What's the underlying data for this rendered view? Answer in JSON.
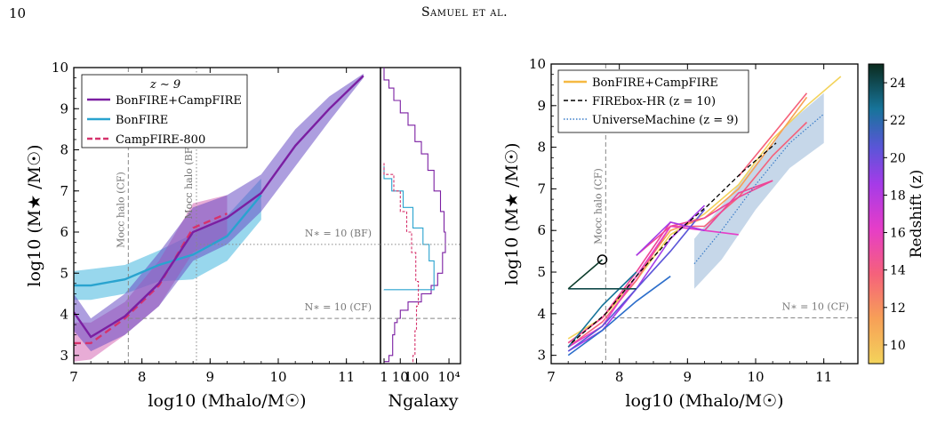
{
  "page": {
    "number": "10",
    "header": "Samuel et al."
  },
  "chart_data": [
    {
      "type": "line",
      "panel": "left-main",
      "annotation": "z ∼ 9",
      "xlabel": "log10 (Mhalo/M☉)",
      "ylabel": "log10 (M★ /M☉)",
      "xlim": [
        7,
        11.5
      ],
      "ylim": [
        2.8,
        10
      ],
      "xticks": [
        "7",
        "8",
        "9",
        "10",
        "11"
      ],
      "yticks": [
        "3",
        "4",
        "5",
        "6",
        "7",
        "8",
        "9",
        "10"
      ],
      "legend_position": "top-left",
      "series": [
        {
          "name": "BonFIRE+CampFIRE",
          "color": "#7b1fa2",
          "x": [
            7.0,
            7.25,
            7.75,
            8.25,
            8.75,
            9.25,
            9.75,
            10.25,
            10.75,
            11.25
          ],
          "y": [
            4.05,
            3.45,
            3.95,
            4.75,
            6.0,
            6.35,
            6.95,
            8.1,
            9.0,
            9.8
          ],
          "band_lo": [
            3.6,
            3.1,
            3.5,
            4.2,
            5.3,
            5.7,
            6.5,
            7.6,
            8.7,
            9.75
          ],
          "band_hi": [
            4.5,
            3.9,
            4.5,
            5.5,
            6.6,
            6.9,
            7.4,
            8.5,
            9.3,
            9.85
          ]
        },
        {
          "name": "BonFIRE",
          "color": "#29a3cf",
          "x": [
            7.0,
            7.25,
            7.75,
            8.25,
            8.75,
            9.25,
            9.75
          ],
          "y": [
            4.7,
            4.7,
            4.85,
            5.2,
            5.45,
            5.9,
            6.9
          ],
          "band_lo": [
            4.35,
            4.35,
            4.5,
            4.8,
            4.85,
            5.3,
            6.3
          ],
          "band_hi": [
            5.05,
            5.1,
            5.2,
            5.55,
            5.95,
            6.4,
            7.3
          ]
        },
        {
          "name": "CampFIRE-800",
          "color": "#d6336c",
          "x": [
            7.0,
            7.25,
            7.75,
            8.25,
            8.75,
            9.25
          ],
          "y": [
            3.3,
            3.3,
            3.9,
            4.7,
            6.1,
            6.45
          ],
          "band_lo": [
            2.85,
            2.9,
            3.5,
            4.2,
            5.5,
            5.9
          ],
          "band_hi": [
            3.8,
            3.8,
            4.3,
            5.3,
            6.7,
            6.9
          ]
        }
      ],
      "vlines": [
        {
          "x": 7.8,
          "label": "Mocc halo (CF)",
          "style": "dashed"
        },
        {
          "x": 8.8,
          "label": "Mocc halo (BF)",
          "style": "dotted"
        }
      ],
      "hlines": [
        {
          "y": 5.7,
          "label": "N∗ = 10 (BF)",
          "style": "dotted"
        },
        {
          "y": 3.9,
          "label": "N∗ = 10 (CF)",
          "style": "dashed"
        }
      ]
    },
    {
      "type": "histogram",
      "panel": "left-side",
      "xlabel": "Ngalaxy",
      "xscale": "log",
      "xticks": [
        "1",
        "10",
        "100",
        "10⁴"
      ],
      "orientation": "horizontal"
    },
    {
      "type": "line",
      "panel": "right",
      "xlabel": "log10 (Mhalo/M☉)",
      "ylabel": "log10 (M★ /M☉)",
      "xlim": [
        7,
        11.5
      ],
      "ylim": [
        2.8,
        10
      ],
      "xticks": [
        "7",
        "8",
        "9",
        "10",
        "11"
      ],
      "yticks": [
        "3",
        "4",
        "5",
        "6",
        "7",
        "8",
        "9",
        "10"
      ],
      "legend_position": "top-left",
      "legend": [
        {
          "name": "BonFIRE+CampFIRE",
          "style": "solid",
          "color": "#f5b942"
        },
        {
          "name": "FIREbox-HR (z = 10)",
          "style": "dashed",
          "color": "#000000"
        },
        {
          "name": "UniverseMachine (z = 9)",
          "style": "dotted",
          "color": "#3a7dc9"
        }
      ],
      "firebox": {
        "x": [
          7.3,
          7.8,
          8.3,
          8.8,
          9.3,
          9.8,
          10.3
        ],
        "y": [
          3.3,
          4.0,
          5.0,
          5.9,
          6.6,
          7.4,
          8.1
        ]
      },
      "universemachine": {
        "x": [
          9.1,
          9.5,
          10.0,
          10.5,
          11.0
        ],
        "y": [
          5.2,
          6.0,
          7.1,
          8.1,
          8.8
        ],
        "band_lo": [
          4.6,
          5.3,
          6.5,
          7.5,
          8.1
        ],
        "band_hi": [
          5.8,
          6.6,
          7.6,
          8.6,
          9.3
        ]
      },
      "vlines": [
        {
          "x": 7.8,
          "label": "Mocc halo (CF)",
          "style": "dashed"
        }
      ],
      "hlines": [
        {
          "y": 3.9,
          "label": "N∗ = 10 (CF)",
          "style": "dashed"
        }
      ],
      "marker": {
        "x": 7.75,
        "y": 5.3
      },
      "colorbar": {
        "label": "Redshift (z)",
        "range": [
          9,
          25
        ],
        "ticks": [
          "10",
          "12",
          "14",
          "16",
          "18",
          "20",
          "22",
          "24"
        ]
      }
    }
  ]
}
